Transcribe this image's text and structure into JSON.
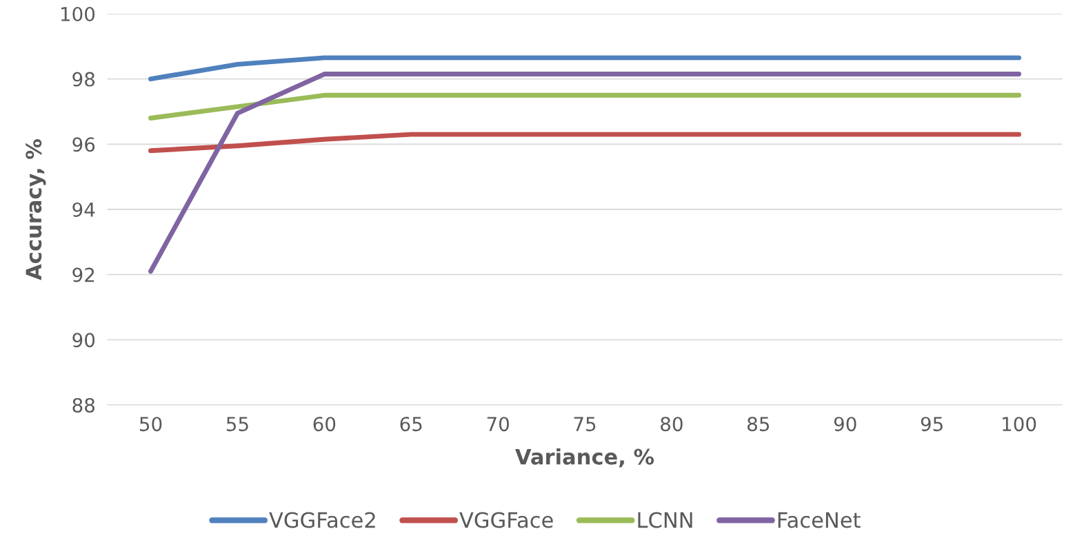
{
  "chart_data": {
    "type": "line",
    "xlabel": "Variance, %",
    "ylabel": "Accuracy, %",
    "categories": [
      "50",
      "55",
      "60",
      "65",
      "70",
      "75",
      "80",
      "85",
      "90",
      "95",
      "100"
    ],
    "ylim": [
      88,
      100
    ],
    "yticks": [
      88,
      90,
      92,
      94,
      96,
      98,
      100
    ],
    "grid": "y",
    "legend": "bottom",
    "line_style": "solid",
    "series": [
      {
        "name": "VGGFace2",
        "color": "#4f81bd",
        "values": [
          98.0,
          98.45,
          98.65,
          98.65,
          98.65,
          98.65,
          98.65,
          98.65,
          98.65,
          98.65,
          98.65
        ]
      },
      {
        "name": "VGGFace",
        "color": "#c0504d",
        "values": [
          95.8,
          95.95,
          96.15,
          96.3,
          96.3,
          96.3,
          96.3,
          96.3,
          96.3,
          96.3,
          96.3
        ]
      },
      {
        "name": "LCNN",
        "color": "#9bbb59",
        "values": [
          96.8,
          97.15,
          97.5,
          97.5,
          97.5,
          97.5,
          97.5,
          97.5,
          97.5,
          97.5,
          97.5
        ]
      },
      {
        "name": "FaceNet",
        "color": "#8064a2",
        "values": [
          92.1,
          96.95,
          98.15,
          98.15,
          98.15,
          98.15,
          98.15,
          98.15,
          98.15,
          98.15,
          98.15
        ]
      }
    ]
  }
}
